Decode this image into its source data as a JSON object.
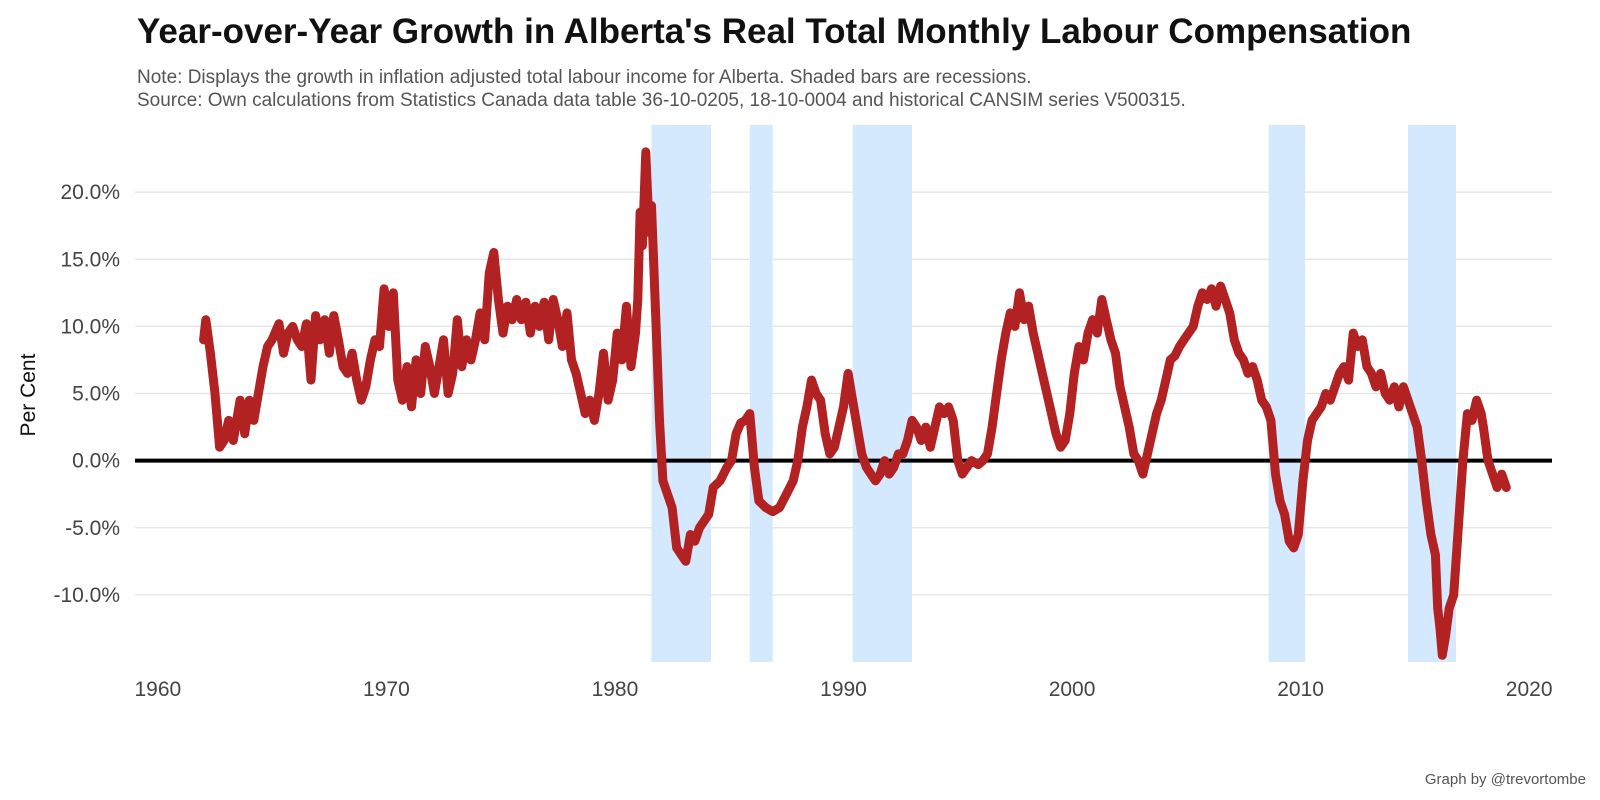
{
  "chart_data": {
    "type": "line",
    "title": "Year-over-Year Growth in Alberta's Real Total Monthly Labour Compensation",
    "subtitle_lines": [
      "Note: Displays the growth in inflation adjusted total labour income for Alberta. Shaded bars are recessions.",
      "Source: Own calculations from Statistics Canada data table 36-10-0205, 18-10-0004 and historical CANSIM series V500315."
    ],
    "ylabel": "Per Cent",
    "xlabel": "",
    "caption": "Graph by @trevortombe",
    "xlim": [
      1959,
      2021
    ],
    "ylim": [
      -15,
      25
    ],
    "x_ticks": [
      1960,
      1970,
      1980,
      1990,
      2000,
      2010,
      2020
    ],
    "y_ticks": [
      -10,
      -5,
      0,
      5,
      10,
      15,
      20
    ],
    "y_tick_labels": [
      "-10.0%",
      "-5.0%",
      "0.0%",
      "5.0%",
      "10.0%",
      "15.0%",
      "20.0%"
    ],
    "grid": true,
    "legend": "none",
    "colors": {
      "line": "#B22222",
      "recession": "#D4E8FE",
      "zero_line": "#000000",
      "grid": "#E3E3E3"
    },
    "recessions": [
      {
        "start": 1981.6,
        "end": 1984.2
      },
      {
        "start": 1985.9,
        "end": 1986.9
      },
      {
        "start": 1990.4,
        "end": 1993.0
      },
      {
        "start": 2008.6,
        "end": 2010.2
      },
      {
        "start": 2014.7,
        "end": 2016.8
      }
    ],
    "series": [
      {
        "points": [
          [
            1962.0,
            9.0
          ],
          [
            1962.1,
            10.5
          ],
          [
            1962.3,
            8.0
          ],
          [
            1962.5,
            5.0
          ],
          [
            1962.7,
            1.0
          ],
          [
            1962.9,
            1.5
          ],
          [
            1963.1,
            3.0
          ],
          [
            1963.3,
            1.5
          ],
          [
            1963.6,
            4.5
          ],
          [
            1963.8,
            2.0
          ],
          [
            1964.0,
            4.5
          ],
          [
            1964.2,
            3.0
          ],
          [
            1964.4,
            5.0
          ],
          [
            1964.6,
            7.0
          ],
          [
            1964.8,
            8.5
          ],
          [
            1965.0,
            9.0
          ],
          [
            1965.3,
            10.2
          ],
          [
            1965.5,
            8.0
          ],
          [
            1965.7,
            9.5
          ],
          [
            1965.9,
            10.0
          ],
          [
            1966.1,
            9.0
          ],
          [
            1966.3,
            8.5
          ],
          [
            1966.5,
            10.2
          ],
          [
            1966.7,
            6.0
          ],
          [
            1966.9,
            10.8
          ],
          [
            1967.1,
            9.0
          ],
          [
            1967.3,
            10.5
          ],
          [
            1967.5,
            8.0
          ],
          [
            1967.7,
            10.8
          ],
          [
            1967.9,
            9.0
          ],
          [
            1968.1,
            7.0
          ],
          [
            1968.3,
            6.5
          ],
          [
            1968.5,
            8.0
          ],
          [
            1968.7,
            6.0
          ],
          [
            1968.9,
            4.5
          ],
          [
            1969.1,
            5.5
          ],
          [
            1969.3,
            7.5
          ],
          [
            1969.5,
            9.0
          ],
          [
            1969.7,
            8.5
          ],
          [
            1969.9,
            12.8
          ],
          [
            1970.1,
            10.0
          ],
          [
            1970.3,
            12.5
          ],
          [
            1970.5,
            6.0
          ],
          [
            1970.7,
            4.5
          ],
          [
            1970.9,
            7.0
          ],
          [
            1971.1,
            4.0
          ],
          [
            1971.3,
            7.5
          ],
          [
            1971.5,
            5.0
          ],
          [
            1971.7,
            8.5
          ],
          [
            1971.9,
            7.0
          ],
          [
            1972.1,
            5.0
          ],
          [
            1972.3,
            7.0
          ],
          [
            1972.5,
            9.0
          ],
          [
            1972.7,
            5.0
          ],
          [
            1972.9,
            6.5
          ],
          [
            1973.1,
            10.5
          ],
          [
            1973.3,
            7.0
          ],
          [
            1973.5,
            9.0
          ],
          [
            1973.7,
            7.5
          ],
          [
            1973.9,
            9.0
          ],
          [
            1974.1,
            11.0
          ],
          [
            1974.3,
            9.0
          ],
          [
            1974.5,
            14.0
          ],
          [
            1974.7,
            15.5
          ],
          [
            1974.9,
            12.0
          ],
          [
            1975.1,
            9.5
          ],
          [
            1975.3,
            11.5
          ],
          [
            1975.5,
            10.5
          ],
          [
            1975.7,
            12.0
          ],
          [
            1975.9,
            10.5
          ],
          [
            1976.1,
            11.8
          ],
          [
            1976.3,
            9.5
          ],
          [
            1976.5,
            11.5
          ],
          [
            1976.7,
            10.0
          ],
          [
            1976.9,
            11.8
          ],
          [
            1977.1,
            9.0
          ],
          [
            1977.3,
            12.0
          ],
          [
            1977.5,
            10.5
          ],
          [
            1977.7,
            8.5
          ],
          [
            1977.9,
            11.0
          ],
          [
            1978.1,
            7.5
          ],
          [
            1978.3,
            6.5
          ],
          [
            1978.5,
            5.0
          ],
          [
            1978.7,
            3.5
          ],
          [
            1978.9,
            4.5
          ],
          [
            1979.1,
            3.0
          ],
          [
            1979.3,
            5.0
          ],
          [
            1979.5,
            8.0
          ],
          [
            1979.7,
            4.5
          ],
          [
            1979.9,
            6.0
          ],
          [
            1980.1,
            9.5
          ],
          [
            1980.3,
            7.5
          ],
          [
            1980.5,
            11.5
          ],
          [
            1980.7,
            7.0
          ],
          [
            1980.9,
            9.5
          ],
          [
            1981.0,
            12.0
          ],
          [
            1981.1,
            18.5
          ],
          [
            1981.2,
            16.0
          ],
          [
            1981.35,
            23.0
          ],
          [
            1981.5,
            17.0
          ],
          [
            1981.6,
            19.0
          ],
          [
            1981.8,
            10.0
          ],
          [
            1981.95,
            3.0
          ],
          [
            1982.1,
            -1.5
          ],
          [
            1982.3,
            -2.5
          ],
          [
            1982.5,
            -3.5
          ],
          [
            1982.7,
            -6.5
          ],
          [
            1982.9,
            -7.0
          ],
          [
            1983.1,
            -7.5
          ],
          [
            1983.3,
            -5.5
          ],
          [
            1983.5,
            -6.0
          ],
          [
            1983.7,
            -5.0
          ],
          [
            1983.9,
            -4.5
          ],
          [
            1984.1,
            -4.0
          ],
          [
            1984.3,
            -2.0
          ],
          [
            1984.6,
            -1.5
          ],
          [
            1984.9,
            -0.5
          ],
          [
            1985.1,
            0.0
          ],
          [
            1985.3,
            2.0
          ],
          [
            1985.5,
            2.8
          ],
          [
            1985.7,
            3.0
          ],
          [
            1985.9,
            3.5
          ],
          [
            1986.1,
            -0.5
          ],
          [
            1986.3,
            -3.0
          ],
          [
            1986.6,
            -3.5
          ],
          [
            1986.9,
            -3.8
          ],
          [
            1987.2,
            -3.5
          ],
          [
            1987.5,
            -2.5
          ],
          [
            1987.8,
            -1.5
          ],
          [
            1988.0,
            0.0
          ],
          [
            1988.2,
            2.5
          ],
          [
            1988.4,
            4.0
          ],
          [
            1988.6,
            6.0
          ],
          [
            1988.8,
            5.0
          ],
          [
            1989.0,
            4.5
          ],
          [
            1989.2,
            2.0
          ],
          [
            1989.4,
            0.5
          ],
          [
            1989.6,
            1.0
          ],
          [
            1989.8,
            2.5
          ],
          [
            1990.0,
            4.0
          ],
          [
            1990.2,
            6.5
          ],
          [
            1990.4,
            4.5
          ],
          [
            1990.6,
            2.5
          ],
          [
            1990.8,
            0.5
          ],
          [
            1991.0,
            -0.5
          ],
          [
            1991.2,
            -1.0
          ],
          [
            1991.4,
            -1.5
          ],
          [
            1991.6,
            -1.0
          ],
          [
            1991.8,
            0.0
          ],
          [
            1992.0,
            -1.0
          ],
          [
            1992.2,
            -0.5
          ],
          [
            1992.4,
            0.5
          ],
          [
            1992.6,
            0.5
          ],
          [
            1992.8,
            1.5
          ],
          [
            1993.0,
            3.0
          ],
          [
            1993.2,
            2.5
          ],
          [
            1993.4,
            1.5
          ],
          [
            1993.6,
            2.5
          ],
          [
            1993.8,
            1.0
          ],
          [
            1994.0,
            2.5
          ],
          [
            1994.2,
            4.0
          ],
          [
            1994.4,
            3.5
          ],
          [
            1994.6,
            4.0
          ],
          [
            1994.8,
            3.0
          ],
          [
            1995.0,
            0.0
          ],
          [
            1995.2,
            -1.0
          ],
          [
            1995.4,
            -0.5
          ],
          [
            1995.6,
            0.0
          ],
          [
            1995.9,
            -0.3
          ],
          [
            1996.1,
            0.0
          ],
          [
            1996.3,
            0.5
          ],
          [
            1996.5,
            2.5
          ],
          [
            1996.7,
            5.0
          ],
          [
            1996.9,
            7.5
          ],
          [
            1997.1,
            9.5
          ],
          [
            1997.3,
            11.0
          ],
          [
            1997.5,
            10.0
          ],
          [
            1997.7,
            12.5
          ],
          [
            1997.9,
            10.5
          ],
          [
            1998.1,
            11.5
          ],
          [
            1998.3,
            9.5
          ],
          [
            1998.5,
            8.0
          ],
          [
            1998.7,
            6.5
          ],
          [
            1998.9,
            5.0
          ],
          [
            1999.1,
            3.5
          ],
          [
            1999.3,
            2.0
          ],
          [
            1999.5,
            1.0
          ],
          [
            1999.7,
            1.5
          ],
          [
            1999.9,
            3.5
          ],
          [
            2000.1,
            6.5
          ],
          [
            2000.3,
            8.5
          ],
          [
            2000.5,
            7.5
          ],
          [
            2000.7,
            9.5
          ],
          [
            2000.9,
            10.5
          ],
          [
            2001.1,
            9.5
          ],
          [
            2001.3,
            12.0
          ],
          [
            2001.5,
            10.5
          ],
          [
            2001.7,
            9.0
          ],
          [
            2001.9,
            8.0
          ],
          [
            2002.1,
            5.5
          ],
          [
            2002.3,
            4.0
          ],
          [
            2002.5,
            2.5
          ],
          [
            2002.7,
            0.5
          ],
          [
            2002.9,
            0.0
          ],
          [
            2003.1,
            -1.0
          ],
          [
            2003.3,
            0.5
          ],
          [
            2003.5,
            2.0
          ],
          [
            2003.7,
            3.5
          ],
          [
            2003.9,
            4.5
          ],
          [
            2004.1,
            6.0
          ],
          [
            2004.3,
            7.5
          ],
          [
            2004.5,
            7.8
          ],
          [
            2004.7,
            8.5
          ],
          [
            2004.9,
            9.0
          ],
          [
            2005.1,
            9.5
          ],
          [
            2005.3,
            10.0
          ],
          [
            2005.5,
            11.5
          ],
          [
            2005.7,
            12.5
          ],
          [
            2005.9,
            12.0
          ],
          [
            2006.1,
            12.8
          ],
          [
            2006.3,
            11.5
          ],
          [
            2006.5,
            13.0
          ],
          [
            2006.7,
            12.0
          ],
          [
            2006.9,
            11.0
          ],
          [
            2007.1,
            9.0
          ],
          [
            2007.3,
            8.0
          ],
          [
            2007.5,
            7.5
          ],
          [
            2007.7,
            6.5
          ],
          [
            2007.9,
            7.0
          ],
          [
            2008.1,
            6.0
          ],
          [
            2008.3,
            4.5
          ],
          [
            2008.5,
            4.0
          ],
          [
            2008.7,
            3.0
          ],
          [
            2008.9,
            -1.0
          ],
          [
            2009.1,
            -3.0
          ],
          [
            2009.3,
            -4.0
          ],
          [
            2009.5,
            -6.0
          ],
          [
            2009.7,
            -6.5
          ],
          [
            2009.9,
            -5.5
          ],
          [
            2010.1,
            -1.5
          ],
          [
            2010.3,
            1.5
          ],
          [
            2010.5,
            3.0
          ],
          [
            2010.7,
            3.5
          ],
          [
            2010.9,
            4.0
          ],
          [
            2011.1,
            5.0
          ],
          [
            2011.3,
            4.5
          ],
          [
            2011.5,
            5.5
          ],
          [
            2011.7,
            6.5
          ],
          [
            2011.9,
            7.0
          ],
          [
            2012.1,
            6.0
          ],
          [
            2012.3,
            9.5
          ],
          [
            2012.5,
            8.5
          ],
          [
            2012.7,
            9.0
          ],
          [
            2012.9,
            7.0
          ],
          [
            2013.1,
            6.5
          ],
          [
            2013.3,
            5.5
          ],
          [
            2013.5,
            6.5
          ],
          [
            2013.7,
            5.0
          ],
          [
            2013.9,
            4.5
          ],
          [
            2014.1,
            5.5
          ],
          [
            2014.3,
            4.0
          ],
          [
            2014.5,
            5.5
          ],
          [
            2014.7,
            4.5
          ],
          [
            2014.9,
            3.5
          ],
          [
            2015.1,
            2.5
          ],
          [
            2015.3,
            0.0
          ],
          [
            2015.5,
            -3.0
          ],
          [
            2015.7,
            -5.5
          ],
          [
            2015.9,
            -7.0
          ],
          [
            2016.0,
            -11.0
          ],
          [
            2016.1,
            -12.5
          ],
          [
            2016.2,
            -14.5
          ],
          [
            2016.35,
            -13.0
          ],
          [
            2016.5,
            -11.0
          ],
          [
            2016.7,
            -10.0
          ],
          [
            2016.9,
            -5.0
          ],
          [
            2017.1,
            0.0
          ],
          [
            2017.3,
            3.5
          ],
          [
            2017.5,
            3.0
          ],
          [
            2017.7,
            4.5
          ],
          [
            2017.9,
            3.5
          ],
          [
            2018.0,
            2.5
          ],
          [
            2018.2,
            0.0
          ],
          [
            2018.4,
            -1.0
          ],
          [
            2018.6,
            -2.0
          ],
          [
            2018.8,
            -1.0
          ],
          [
            2019.0,
            -2.0
          ]
        ]
      }
    ]
  }
}
